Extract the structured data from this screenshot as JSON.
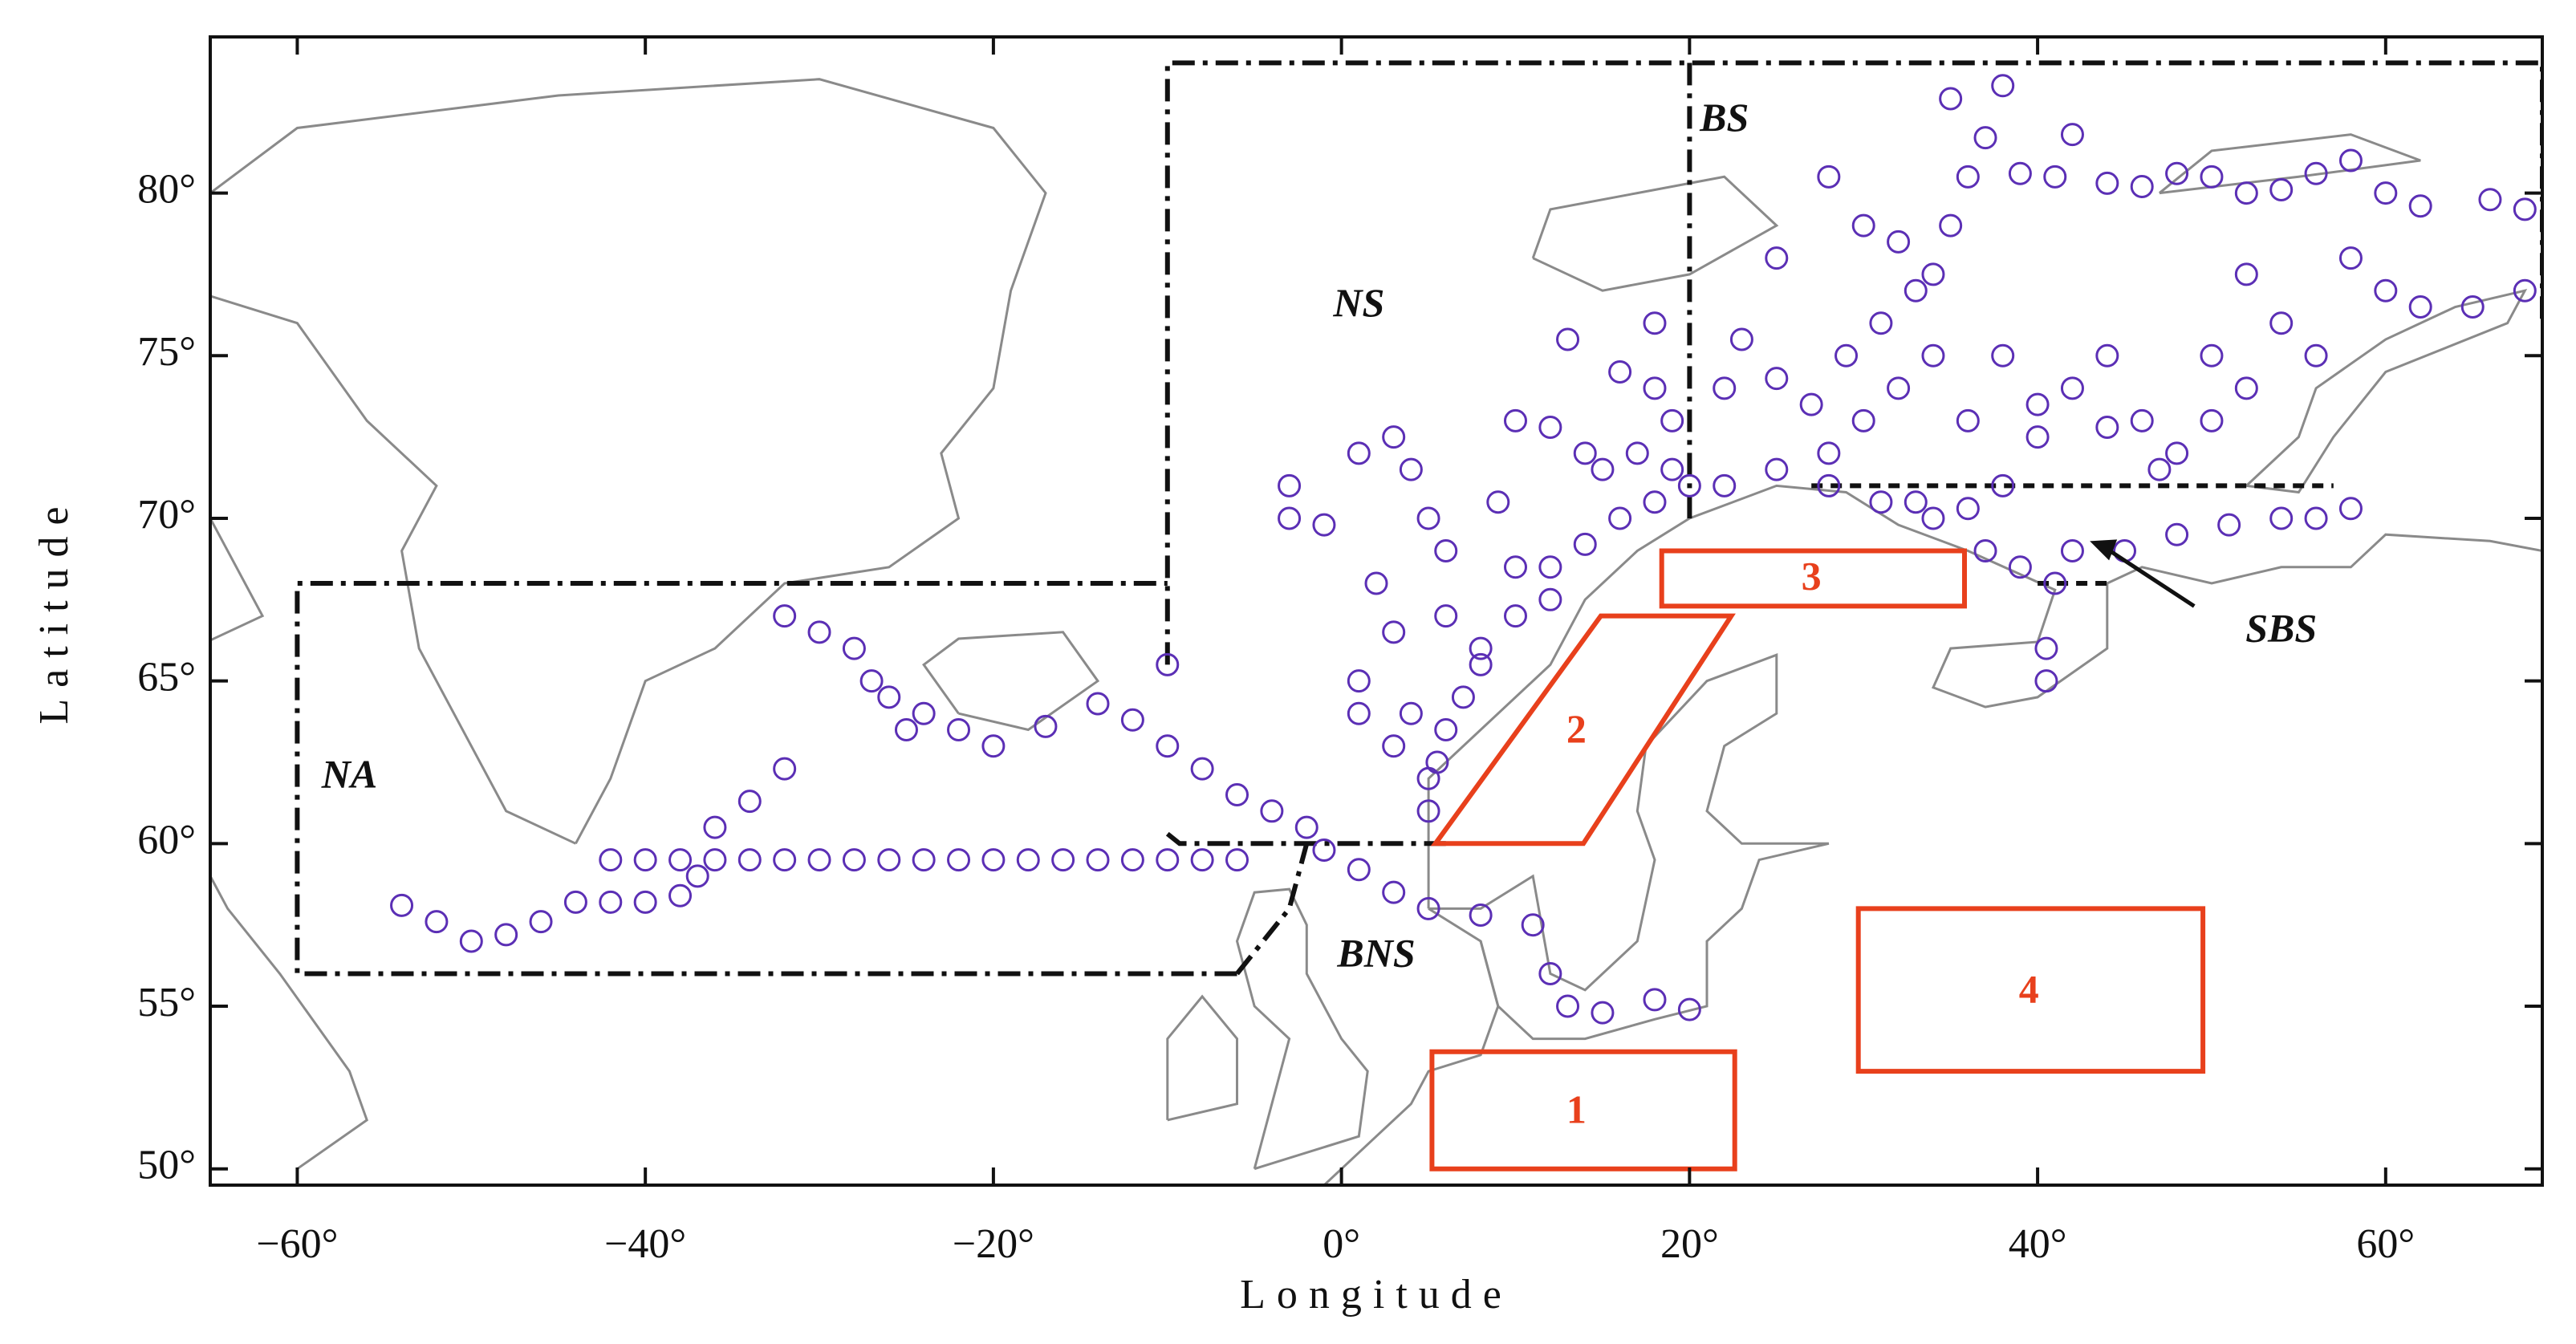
{
  "chart_data": {
    "type": "scatter",
    "x_label": "Longitude",
    "y_label": "Latitude",
    "color": "#5b2fb5",
    "xlim": [
      -65,
      69
    ],
    "ylim": [
      49.5,
      84.8
    ],
    "xticks": [
      {
        "value": -60,
        "label": "−60°"
      },
      {
        "value": -40,
        "label": "−40°"
      },
      {
        "value": -20,
        "label": "−20°"
      },
      {
        "value": 0,
        "label": "0°"
      },
      {
        "value": 20,
        "label": "20°"
      },
      {
        "value": 40,
        "label": "40°"
      },
      {
        "value": 60,
        "label": "60°"
      }
    ],
    "yticks": [
      {
        "value": 50,
        "label": "50°"
      },
      {
        "value": 55,
        "label": "55°"
      },
      {
        "value": 60,
        "label": "60°"
      },
      {
        "value": 65,
        "label": "65°"
      },
      {
        "value": 70,
        "label": "70°"
      },
      {
        "value": 75,
        "label": "75°"
      },
      {
        "value": 80,
        "label": "80°"
      }
    ],
    "region_labels": [
      "NA",
      "NS",
      "BS",
      "BNS",
      "SBS"
    ],
    "box_labels": [
      "1",
      "2",
      "3",
      "4"
    ],
    "x": [
      -42,
      -40,
      -38,
      -36,
      -34,
      -32,
      -30,
      -28,
      -26,
      -24,
      -22,
      -20,
      -18,
      -16,
      -14,
      -12,
      -10,
      -8,
      -6,
      -54,
      -52,
      -50,
      -48,
      -46,
      -44,
      -42,
      -40,
      -38,
      -37,
      -36,
      -34,
      -32,
      -32,
      -30,
      -28,
      -27,
      -26,
      -25,
      -24,
      -22,
      -20,
      -17,
      -14,
      -12,
      -10,
      -8,
      -6,
      -4,
      -2,
      -10,
      -1,
      1,
      3,
      5,
      8,
      11,
      12,
      13,
      15,
      18,
      20,
      5,
      5.5,
      6,
      7,
      8,
      10,
      12,
      14,
      16,
      18,
      20,
      22,
      25,
      28,
      31,
      34,
      37,
      39,
      41,
      40.5,
      40.5,
      42,
      45,
      48,
      51,
      54,
      56,
      58,
      -3,
      -3,
      -1,
      1,
      3,
      4,
      5,
      6,
      2,
      3,
      1,
      1,
      4,
      3,
      5,
      10,
      12,
      14,
      13,
      16,
      18,
      19,
      19,
      15,
      17,
      18,
      9,
      10,
      12,
      8,
      6,
      23,
      25,
      27,
      29,
      30,
      31,
      32,
      33,
      34,
      36,
      35,
      36,
      35,
      37,
      38,
      39,
      41,
      42,
      44,
      46,
      48,
      50,
      52,
      54,
      56,
      58,
      60,
      62,
      66,
      68,
      68,
      65,
      62,
      60,
      58,
      56,
      54,
      52,
      50,
      48,
      46,
      44,
      42,
      40,
      38,
      38,
      36,
      33,
      28,
      25,
      22,
      40,
      44,
      47,
      50,
      52,
      28,
      30,
      32,
      34
    ],
    "y": [
      59.5,
      59.5,
      59.5,
      59.5,
      59.5,
      59.5,
      59.5,
      59.5,
      59.5,
      59.5,
      59.5,
      59.5,
      59.5,
      59.5,
      59.5,
      59.5,
      59.5,
      59.5,
      59.5,
      58.1,
      57.6,
      57,
      57.2,
      57.6,
      58.2,
      58.2,
      58.2,
      58.4,
      59,
      60.5,
      61.3,
      62.3,
      67,
      66.5,
      66,
      65,
      64.5,
      63.5,
      64,
      63.5,
      63,
      63.6,
      64.3,
      63.8,
      63,
      62.3,
      61.5,
      61,
      60.5,
      65.5,
      59.8,
      59.2,
      58.5,
      58,
      57.8,
      57.5,
      56,
      55,
      54.8,
      55.2,
      54.9,
      61,
      62.5,
      63.5,
      64.5,
      65.5,
      67,
      68.5,
      69.2,
      70,
      70.5,
      71,
      71,
      71.5,
      71,
      70.5,
      70,
      69,
      68.5,
      68,
      66,
      65,
      69,
      69,
      69.5,
      69.8,
      70,
      70,
      70.3,
      71,
      70,
      69.8,
      72,
      72.5,
      71.5,
      70,
      69,
      68,
      66.5,
      64,
      65,
      64,
      63,
      62,
      73,
      72.8,
      72,
      75.5,
      74.5,
      76,
      73,
      71.5,
      71.5,
      72,
      74,
      70.5,
      68.5,
      67.5,
      66,
      67,
      75.5,
      74.3,
      73.5,
      75,
      73,
      76,
      74,
      77,
      75,
      73,
      79,
      80.5,
      82.9,
      81.7,
      83.3,
      80.6,
      80.5,
      81.8,
      80.3,
      80.2,
      80.6,
      80.5,
      80,
      80.1,
      80.6,
      81,
      80,
      79.6,
      79.8,
      79.5,
      77,
      76.5,
      76.5,
      77,
      78,
      75,
      76,
      74,
      73,
      72,
      73,
      75,
      74,
      72.5,
      75,
      71,
      70.3,
      70.5,
      72,
      78,
      74,
      73.5,
      72.8,
      71.5,
      75,
      77.5,
      80.5,
      79,
      78.5,
      77.5
    ]
  }
}
